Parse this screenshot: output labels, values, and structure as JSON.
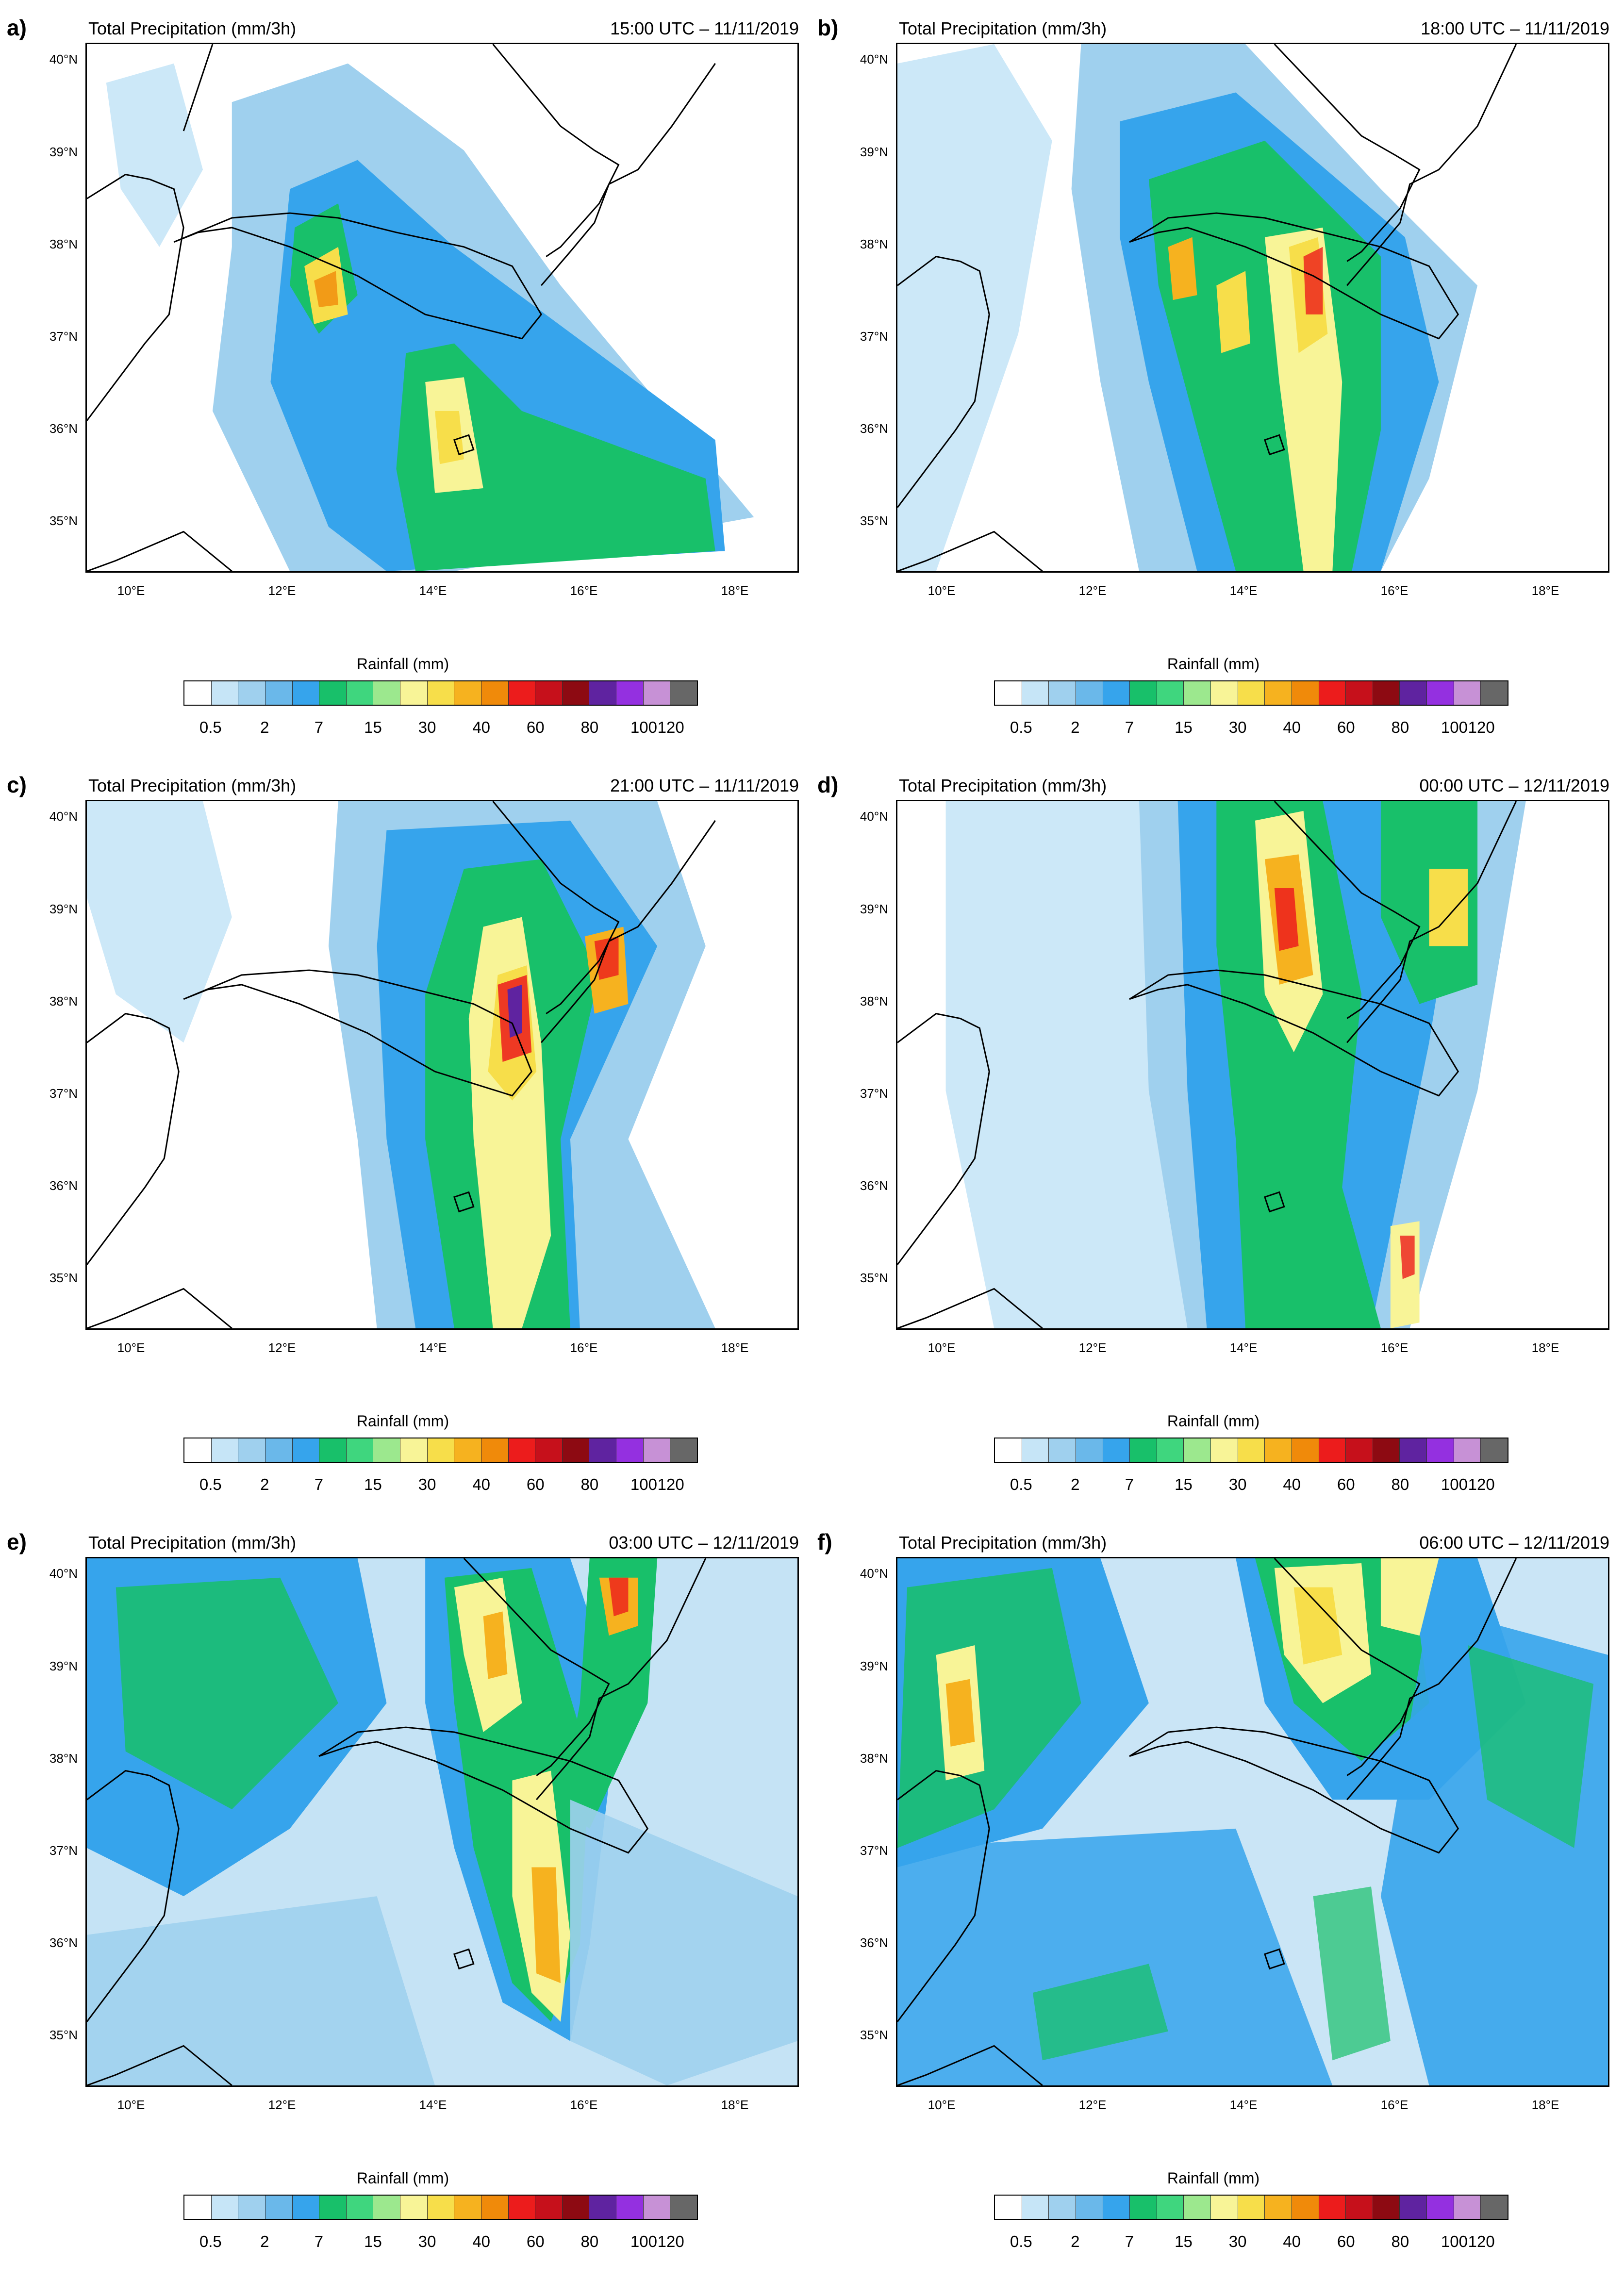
{
  "figure": {
    "panels": [
      {
        "letter": "a)",
        "title": "Total Precipitation (mm/3h)",
        "time": "15:00 UTC – 11/11/2019"
      },
      {
        "letter": "b)",
        "title": "Total Precipitation (mm/3h)",
        "time": "18:00 UTC – 11/11/2019"
      },
      {
        "letter": "c)",
        "title": "Total Precipitation (mm/3h)",
        "time": "21:00 UTC – 11/11/2019"
      },
      {
        "letter": "d)",
        "title": "Total Precipitation (mm/3h)",
        "time": "00:00 UTC – 12/11/2019"
      },
      {
        "letter": "e)",
        "title": "Total Precipitation (mm/3h)",
        "time": "03:00 UTC – 12/11/2019"
      },
      {
        "letter": "f)",
        "title": "Total Precipitation (mm/3h)",
        "time": "06:00 UTC – 12/11/2019"
      }
    ],
    "lat_labels": [
      "40°N",
      "39°N",
      "38°N",
      "37°N",
      "36°N",
      "35°N"
    ],
    "lon_labels": [
      "10°E",
      "12°E",
      "14°E",
      "16°E",
      "18°E"
    ],
    "legend": {
      "title": "Rainfall  (mm)",
      "tick_labels": [
        "0.5",
        "2",
        "7",
        "15",
        "30",
        "40",
        "60",
        "80",
        "100",
        "120"
      ],
      "colors": [
        "#ffffff",
        "#c6e5f7",
        "#9fd0ee",
        "#6ab8ea",
        "#36a4ec",
        "#18c06a",
        "#3fd67e",
        "#9ce88e",
        "#f8f497",
        "#f7de4a",
        "#f6b21f",
        "#f08a0a",
        "#ec1c1c",
        "#c6101b",
        "#8d0a12",
        "#5f23a0",
        "#9430e0",
        "#c791d6",
        "#676767"
      ]
    },
    "map_colors": {
      "land": "#ffffff",
      "coast": "#000000"
    }
  }
}
